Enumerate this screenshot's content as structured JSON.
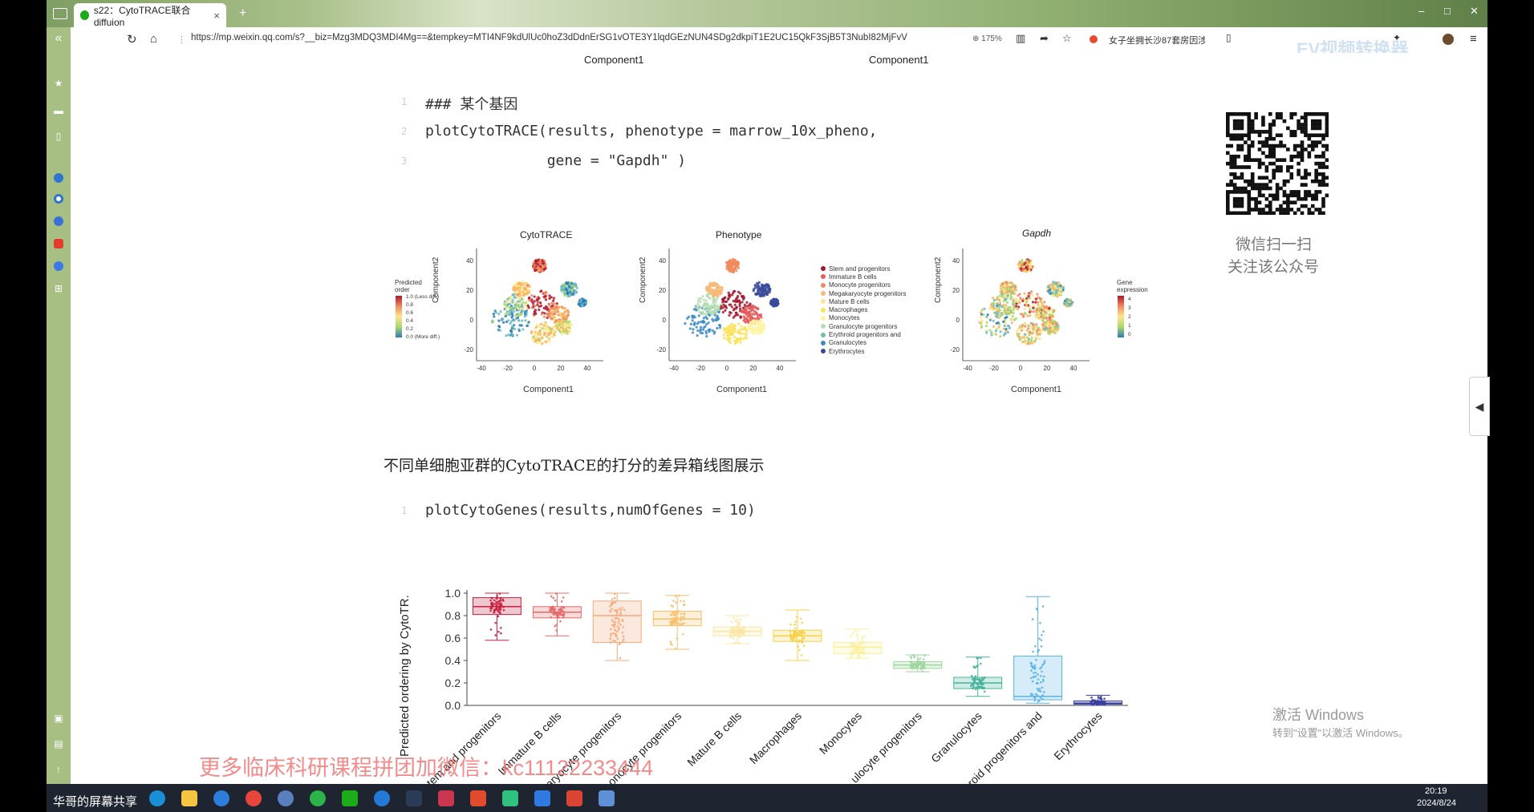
{
  "browser": {
    "tab_title": "s22：CytoTRACE联合diffuion",
    "tab_close": "×",
    "url": "https://mp.weixin.qq.com/s?__biz=Mzg3MDQ3MDI4Mg==&tempkey=MTI4NF9kdUlUc0hoZ3dDdnErSG1vOTE3Y1lqdGEzNUN4SDg2dkpiT1E2UC15QkF3SjB5T3NubI82MjFvV",
    "zoom": "175%",
    "search_hint": "女子坐拥长沙87套房因涉",
    "ev_watermark": "EV视频转换器",
    "window_controls": [
      "–",
      "□",
      "✕"
    ]
  },
  "article": {
    "top_labels": [
      "Component1",
      "Component1"
    ],
    "code1": {
      "lines": [
        "### 某个基因",
        "plotCytoTRACE(results, phenotype = marrow_10x_pheno,",
        "              gene = \"Gapdh\" )"
      ],
      "line_numbers": [
        "1",
        "2",
        "3"
      ]
    },
    "qr": {
      "caption_line1": "微信扫一扫",
      "caption_line2": "关注该公众号"
    },
    "fig1": {
      "panels": [
        {
          "title": "CytoTRACE",
          "xlabel": "Component1",
          "ylabel": "Component2"
        },
        {
          "title": "Phenotype",
          "xlabel": "Component1",
          "ylabel": "Component2"
        },
        {
          "title": "Gapdh",
          "xlabel": "Component1",
          "ylabel": "Component2"
        }
      ],
      "x_ticks": [
        "-40",
        "-20",
        "0",
        "20",
        "40"
      ],
      "y_ticks": [
        "40",
        "20",
        "0",
        "-20"
      ],
      "cyto_legend": {
        "title_line1": "Predicted",
        "title_line2": "order",
        "ticks": [
          "1.0 (Less diff.)",
          "0.8",
          "0.6",
          "0.4",
          "0.2",
          "0.0 (More diff.)"
        ]
      },
      "gene_legend": {
        "title_line1": "Gene",
        "title_line2": "expression",
        "ticks": [
          "4",
          "3",
          "2",
          "1",
          "0"
        ]
      },
      "pheno_legend": [
        {
          "label": "Stem and progenitors",
          "color": "#a3172e"
        },
        {
          "label": "Immature B cells",
          "color": "#e45c5c"
        },
        {
          "label": "Monocyte progenitors",
          "color": "#f08a5d"
        },
        {
          "label": "Megakaryocyte progenitors",
          "color": "#f7b977"
        },
        {
          "label": "Mature B cells",
          "color": "#fbe39b"
        },
        {
          "label": "Macrophages",
          "color": "#f9e35a"
        },
        {
          "label": "Monocytes",
          "color": "#fdf3a6"
        },
        {
          "label": "Granulocyte progenitors",
          "color": "#b5dfb0"
        },
        {
          "label": "Erythroid progenitors and",
          "color": "#6bbfa9"
        },
        {
          "label": "Granulocytes",
          "color": "#3b8bc2"
        },
        {
          "label": "Erythrocytes",
          "color": "#3a4b9a"
        }
      ]
    },
    "section_text": "不同单细胞亚群的CytoTRACE的打分的差异箱线图展示",
    "code2": {
      "line": "plotCytoGenes(results,numOfGenes = 10)",
      "line_number": "1"
    },
    "watermark": "更多临床科研课程拼团加微信：kc11122233444",
    "activate": {
      "line1": "激活 Windows",
      "line2": "转到\"设置\"以激活 Windows。"
    }
  },
  "chart_data": {
    "type": "box",
    "ylabel": "Predicted ordering by CytoTR.",
    "ylim": [
      0,
      1.0
    ],
    "y_ticks": [
      "1.0",
      "0.8",
      "0.6",
      "0.4",
      "0.2",
      "0.0"
    ],
    "categories": [
      "Stem and progenitors",
      "Immature B cells",
      "Megakaryocyte progenitors",
      "Monocyte progenitors",
      "Mature B cells",
      "Macrophages",
      "Monocytes",
      "Granulocyte progenitors",
      "Granulocytes",
      "Erythroid progenitors and",
      "Erythrocytes"
    ],
    "category_labels_shown": [
      "tem and progenitors",
      "Immature B cells",
      "aryocyte progenitors",
      "onocyte progenitors",
      "Mature B cells",
      "Macrophages",
      "Monocytes",
      "ulocyte progenitors",
      "Granulocytes",
      "roid progenitors and",
      "Erythrocytes"
    ],
    "boxes": [
      {
        "q1": 0.81,
        "median": 0.88,
        "q3": 0.96,
        "min": 0.58,
        "max": 1.0,
        "color": "#c8213f"
      },
      {
        "q1": 0.78,
        "median": 0.83,
        "q3": 0.88,
        "min": 0.62,
        "max": 1.0,
        "color": "#e46a6a"
      },
      {
        "q1": 0.56,
        "median": 0.8,
        "q3": 0.93,
        "min": 0.4,
        "max": 1.0,
        "color": "#f4a97a"
      },
      {
        "q1": 0.71,
        "median": 0.77,
        "q3": 0.84,
        "min": 0.5,
        "max": 0.98,
        "color": "#f7c06a"
      },
      {
        "q1": 0.62,
        "median": 0.66,
        "q3": 0.7,
        "min": 0.55,
        "max": 0.8,
        "color": "#fbe6a3"
      },
      {
        "q1": 0.57,
        "median": 0.62,
        "q3": 0.67,
        "min": 0.4,
        "max": 0.85,
        "color": "#f5d24a"
      },
      {
        "q1": 0.46,
        "median": 0.52,
        "q3": 0.56,
        "min": 0.42,
        "max": 0.68,
        "color": "#fcef9c"
      },
      {
        "q1": 0.33,
        "median": 0.36,
        "q3": 0.39,
        "min": 0.3,
        "max": 0.45,
        "color": "#9fd6a0"
      },
      {
        "q1": 0.15,
        "median": 0.2,
        "q3": 0.25,
        "min": 0.08,
        "max": 0.43,
        "color": "#46b39a"
      },
      {
        "q1": 0.05,
        "median": 0.08,
        "q3": 0.44,
        "min": 0.02,
        "max": 0.97,
        "color": "#5ab3e2"
      },
      {
        "q1": 0.01,
        "median": 0.02,
        "q3": 0.04,
        "min": 0.0,
        "max": 0.09,
        "color": "#3c3f9c"
      }
    ]
  },
  "taskbar": {
    "screen_share": "华哥的屏幕共享",
    "time": "20:19",
    "date": "2024/8/24"
  }
}
